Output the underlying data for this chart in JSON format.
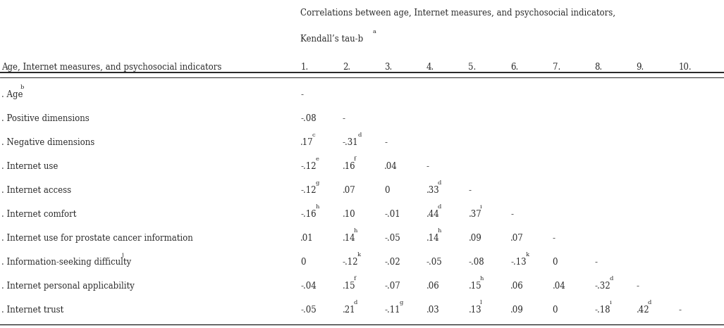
{
  "title_top": "Correlations between age, Internet measures, and psychosocial indicators,",
  "title_sub": "Kendall’s tau-b",
  "title_sub_superscript": "a",
  "col_header_label": "Age, Internet measures, and psychosocial indicators",
  "col_numbers": [
    "1.",
    "2.",
    "3.",
    "4.",
    "5.",
    "6.",
    "7.",
    "8.",
    "9.",
    "10."
  ],
  "rows": [
    {
      "label": ". Age",
      "label_super": "b",
      "values": [
        "-",
        "",
        "",
        "",
        "",
        "",
        "",
        "",
        "",
        ""
      ],
      "value_supers": [
        "",
        "",
        "",
        "",
        "",
        "",
        "",
        "",
        "",
        ""
      ]
    },
    {
      "label": ". Positive dimensions",
      "label_super": "",
      "values": [
        "-.08",
        "-",
        "",
        "",
        "",
        "",
        "",
        "",
        "",
        ""
      ],
      "value_supers": [
        "",
        "",
        "",
        "",
        "",
        "",
        "",
        "",
        "",
        ""
      ]
    },
    {
      "label": ". Negative dimensions",
      "label_super": "",
      "values": [
        ".17",
        "-.31",
        "-",
        "",
        "",
        "",
        "",
        "",
        "",
        ""
      ],
      "value_supers": [
        "c",
        "d",
        "",
        "",
        "",
        "",
        "",
        "",
        "",
        ""
      ]
    },
    {
      "label": ". Internet use",
      "label_super": "",
      "values": [
        "-.12",
        ".16",
        ".04",
        "-",
        "",
        "",
        "",
        "",
        "",
        ""
      ],
      "value_supers": [
        "e",
        "f",
        "",
        "",
        "",
        "",
        "",
        "",
        "",
        ""
      ]
    },
    {
      "label": ". Internet access",
      "label_super": "",
      "values": [
        "-.12",
        ".07",
        "0",
        ".33",
        "-",
        "",
        "",
        "",
        "",
        ""
      ],
      "value_supers": [
        "g",
        "",
        "",
        "d",
        "",
        "",
        "",
        "",
        "",
        ""
      ]
    },
    {
      "label": ". Internet comfort",
      "label_super": "",
      "values": [
        "-.16",
        ".10",
        "-.01",
        ".44",
        ".37",
        "-",
        "",
        "",
        "",
        ""
      ],
      "value_supers": [
        "h",
        "",
        "",
        "d",
        "i",
        "",
        "",
        "",
        "",
        ""
      ]
    },
    {
      "label": ". Internet use for prostate cancer information",
      "label_super": "",
      "values": [
        ".01",
        ".14",
        "-.05",
        ".14",
        ".09",
        ".07",
        "-",
        "",
        "",
        ""
      ],
      "value_supers": [
        "",
        "h",
        "",
        "h",
        "",
        "",
        "",
        "",
        "",
        ""
      ]
    },
    {
      "label": ". Information-seeking difficulty",
      "label_super": "j",
      "values": [
        "0",
        "-.12",
        "-.02",
        "-.05",
        "-.08",
        "-.13",
        "0",
        "-",
        "",
        ""
      ],
      "value_supers": [
        "",
        "k",
        "",
        "",
        "",
        "k",
        "",
        "",
        "",
        ""
      ]
    },
    {
      "label": ". Internet personal applicability",
      "label_super": "",
      "values": [
        "-.04",
        ".15",
        "-.07",
        ".06",
        ".15",
        ".06",
        ".04",
        "-.32",
        "-",
        ""
      ],
      "value_supers": [
        "",
        "f",
        "",
        "",
        "h",
        "",
        "",
        "d",
        "",
        ""
      ]
    },
    {
      "label": ". Internet trust",
      "label_super": "",
      "values": [
        "-.05",
        ".21",
        "-.11",
        ".03",
        ".13",
        ".09",
        "0",
        "-.18",
        ".42",
        "-"
      ],
      "value_supers": [
        "",
        "d",
        "g",
        "",
        "l",
        "",
        "",
        "i",
        "d",
        ""
      ]
    }
  ],
  "background_color": "#ffffff",
  "text_color": "#2b2b2b",
  "font_size": 8.5,
  "super_font_size": 6.0
}
